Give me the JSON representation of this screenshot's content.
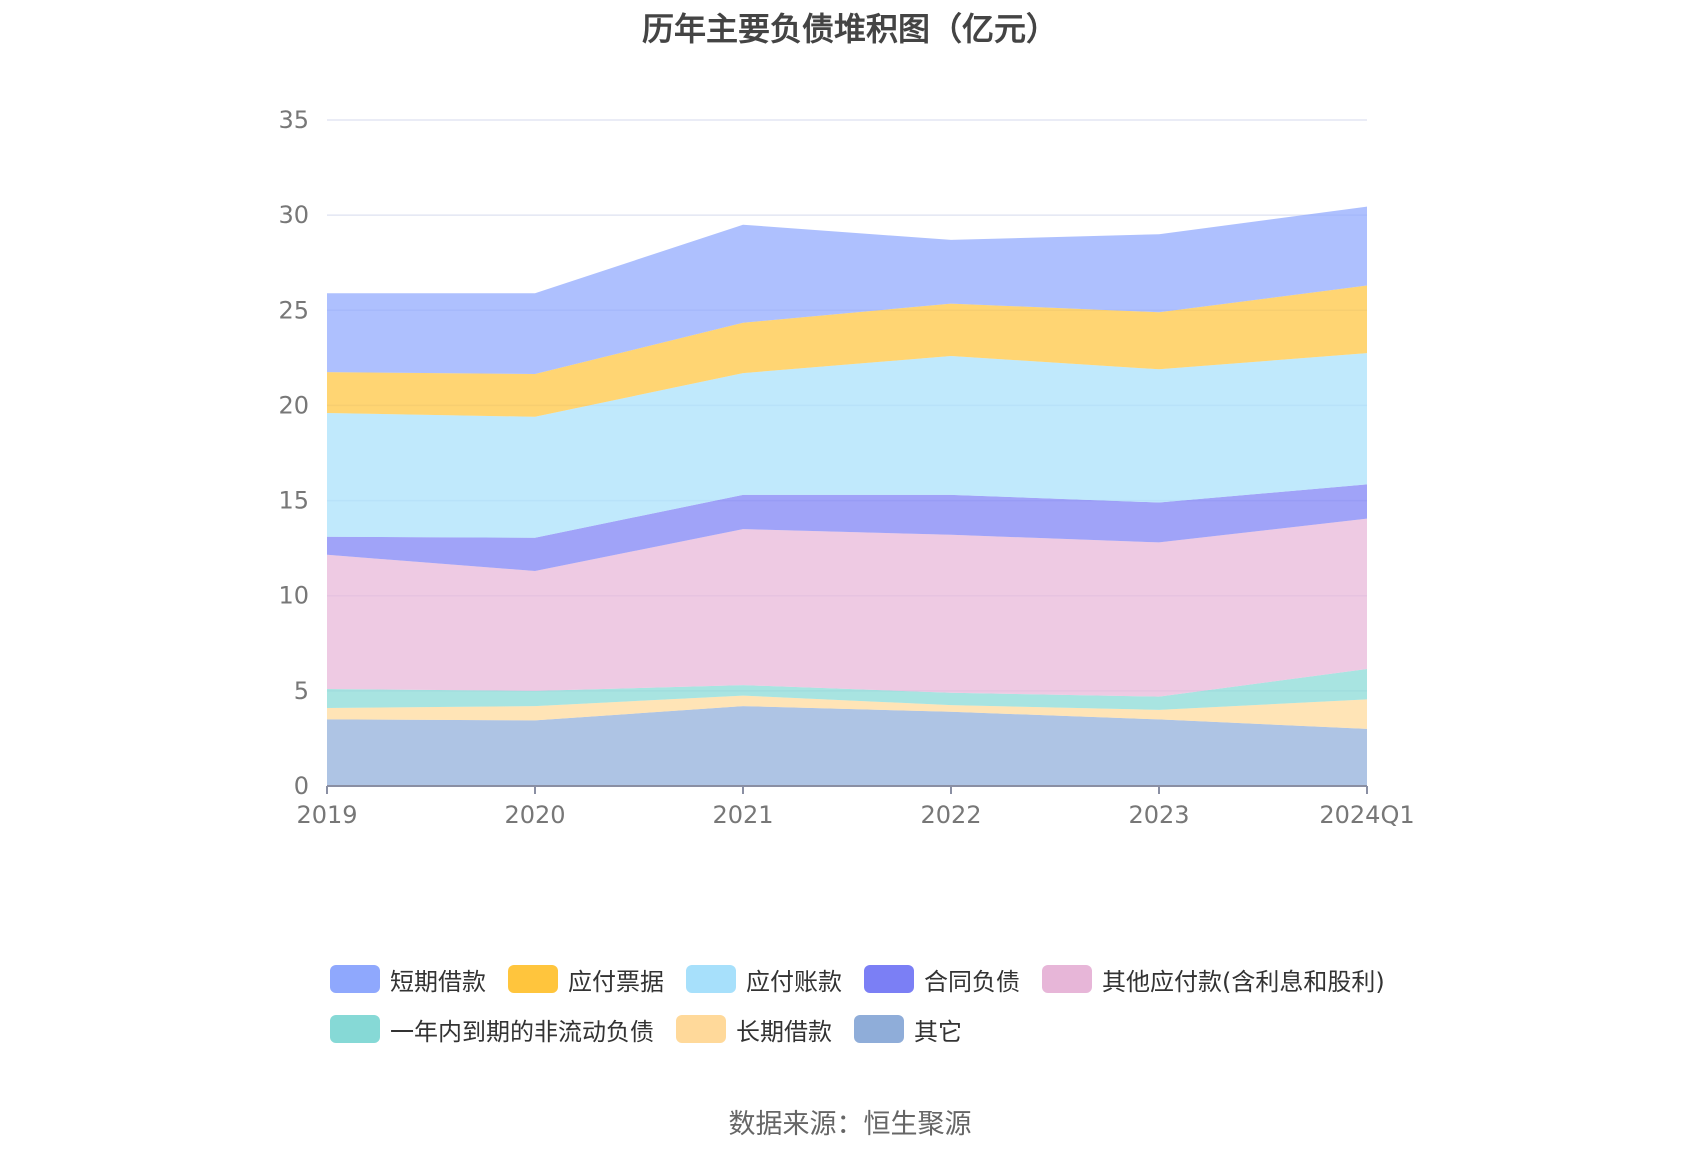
{
  "chart_data": {
    "type": "area",
    "stacked": true,
    "title": "历年主要负债堆积图（亿元）",
    "categories": [
      "2019",
      "2020",
      "2021",
      "2022",
      "2023",
      "2024Q1"
    ],
    "ylim": [
      0,
      35
    ],
    "yticks": [
      "0",
      "5",
      "10",
      "15",
      "20",
      "25",
      "30",
      "35"
    ],
    "grid": true,
    "legend_position": "bottom",
    "series": [
      {
        "name": "其它",
        "color": "#8fadd9",
        "values": [
          3.5,
          3.45,
          4.2,
          3.9,
          3.5,
          3.0
        ]
      },
      {
        "name": "长期借款",
        "color": "#ffd99a",
        "values": [
          0.6,
          0.75,
          0.55,
          0.35,
          0.5,
          1.55
        ]
      },
      {
        "name": "一年内到期的非流动负债",
        "color": "#86d9d6",
        "values": [
          1.0,
          0.8,
          0.55,
          0.65,
          0.7,
          1.6
        ]
      },
      {
        "name": "其他应付款(含利息和股利)",
        "color": "#e7b6d8",
        "values": [
          7.05,
          6.3,
          8.2,
          8.3,
          8.1,
          7.9
        ]
      },
      {
        "name": "合同负债",
        "color": "#7b7ff5",
        "values": [
          0.95,
          1.75,
          1.8,
          2.1,
          2.1,
          1.8
        ]
      },
      {
        "name": "应付账款",
        "color": "#a7e0fb",
        "values": [
          6.5,
          6.35,
          6.4,
          7.3,
          7.0,
          6.9
        ]
      },
      {
        "name": "应付票据",
        "color": "#ffc53d",
        "values": [
          2.15,
          2.25,
          2.65,
          2.75,
          3.0,
          3.55
        ]
      },
      {
        "name": "短期借款",
        "color": "#8fa8fd",
        "values": [
          4.15,
          4.25,
          5.15,
          3.35,
          4.1,
          4.15
        ]
      }
    ]
  },
  "legend_rows": [
    [
      {
        "label": "短期借款",
        "color": "#8fa8fd"
      },
      {
        "label": "应付票据",
        "color": "#ffc53d"
      },
      {
        "label": "应付账款",
        "color": "#a7e0fb"
      },
      {
        "label": "合同负债",
        "color": "#7b7ff5"
      },
      {
        "label": "其他应付款(含利息和股利)",
        "color": "#e7b6d8"
      }
    ],
    [
      {
        "label": "一年内到期的非流动负债",
        "color": "#86d9d6"
      },
      {
        "label": "长期借款",
        "color": "#ffd99a"
      },
      {
        "label": "其它",
        "color": "#8fadd9"
      }
    ]
  ],
  "source": "数据来源：恒生聚源"
}
